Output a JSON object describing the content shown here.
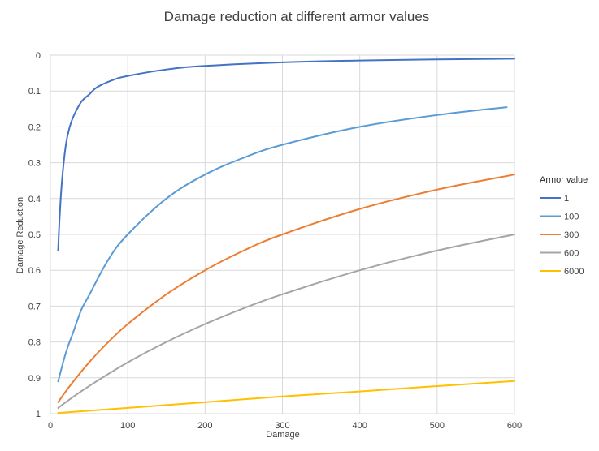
{
  "chart_data": {
    "type": "line",
    "title": "Damage reduction at different armor values",
    "xlabel": "Damage",
    "ylabel": "Damage Reduction",
    "xlim": [
      0,
      600
    ],
    "ylim": [
      0,
      1
    ],
    "y_reversed": true,
    "x_ticks": [
      "0",
      "100",
      "200",
      "300",
      "400",
      "500",
      "600"
    ],
    "y_ticks": [
      "0",
      "0.1",
      "0.2",
      "0.3",
      "0.4",
      "0.5",
      "0.6",
      "0.7",
      "0.8",
      "0.9",
      "1"
    ],
    "grid": true,
    "legend_title": "Armor value",
    "legend_position": "right",
    "series": [
      {
        "name": "1",
        "color": "#4472C4",
        "points": [
          [
            10,
            0.545
          ],
          [
            12,
            0.45
          ],
          [
            15,
            0.35
          ],
          [
            20,
            0.25
          ],
          [
            25,
            0.2
          ],
          [
            30,
            0.17
          ],
          [
            40,
            0.13
          ],
          [
            50,
            0.11
          ],
          [
            60,
            0.09
          ],
          [
            80,
            0.07
          ],
          [
            100,
            0.058
          ],
          [
            150,
            0.04
          ],
          [
            200,
            0.03
          ],
          [
            300,
            0.02
          ],
          [
            400,
            0.015
          ],
          [
            500,
            0.012
          ],
          [
            600,
            0.01
          ]
        ]
      },
      {
        "name": "100",
        "color": "#5B9BD5",
        "points": [
          [
            10,
            0.91
          ],
          [
            20,
            0.83
          ],
          [
            30,
            0.77
          ],
          [
            40,
            0.71
          ],
          [
            50,
            0.67
          ],
          [
            75,
            0.57
          ],
          [
            100,
            0.5
          ],
          [
            150,
            0.4
          ],
          [
            200,
            0.333
          ],
          [
            250,
            0.286
          ],
          [
            300,
            0.25
          ],
          [
            400,
            0.2
          ],
          [
            500,
            0.167
          ],
          [
            590,
            0.145
          ]
        ]
      },
      {
        "name": "300",
        "color": "#ED7D31",
        "points": [
          [
            10,
            0.968
          ],
          [
            25,
            0.923
          ],
          [
            50,
            0.857
          ],
          [
            75,
            0.8
          ],
          [
            100,
            0.75
          ],
          [
            150,
            0.667
          ],
          [
            200,
            0.6
          ],
          [
            250,
            0.545
          ],
          [
            300,
            0.5
          ],
          [
            400,
            0.429
          ],
          [
            500,
            0.375
          ],
          [
            600,
            0.333
          ]
        ]
      },
      {
        "name": "600",
        "color": "#A5A5A5",
        "points": [
          [
            10,
            0.984
          ],
          [
            25,
            0.96
          ],
          [
            50,
            0.923
          ],
          [
            100,
            0.857
          ],
          [
            150,
            0.8
          ],
          [
            200,
            0.75
          ],
          [
            250,
            0.706
          ],
          [
            300,
            0.667
          ],
          [
            400,
            0.6
          ],
          [
            500,
            0.545
          ],
          [
            600,
            0.5
          ]
        ]
      },
      {
        "name": "6000",
        "color": "#FFC000",
        "points": [
          [
            10,
            0.998
          ],
          [
            100,
            0.984
          ],
          [
            200,
            0.968
          ],
          [
            300,
            0.952
          ],
          [
            400,
            0.938
          ],
          [
            500,
            0.923
          ],
          [
            600,
            0.909
          ]
        ]
      }
    ]
  }
}
